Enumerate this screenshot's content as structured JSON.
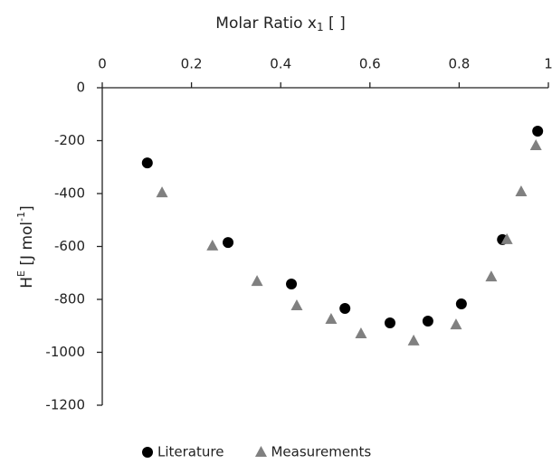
{
  "chart_data": {
    "type": "scatter",
    "x_label": [
      "Molar Ratio x",
      "1",
      " [ ]"
    ],
    "y_label": [
      "H",
      "E",
      " [J mol",
      "-1",
      "]"
    ],
    "xlim": [
      0,
      1
    ],
    "xticks": [
      0,
      0.2,
      0.4,
      0.6,
      0.8,
      1
    ],
    "ylim": [
      -1200,
      0
    ],
    "yticks": [
      0,
      -200,
      -400,
      -600,
      -800,
      -1000,
      -1200
    ],
    "x_axis_position": "top",
    "legend": "bottom",
    "series": [
      {
        "name": "Literature",
        "color": "#000000",
        "marker": "circle",
        "x": [
          0.101,
          0.282,
          0.424,
          0.544,
          0.645,
          0.73,
          0.805,
          0.897,
          0.976
        ],
        "values": [
          -284,
          -585,
          -742,
          -834,
          -889,
          -882,
          -817,
          -574,
          -164
        ]
      },
      {
        "name": "Measurements",
        "color": "#808080",
        "marker": "triangle",
        "x": [
          0.134,
          0.247,
          0.347,
          0.436,
          0.513,
          0.58,
          0.698,
          0.793,
          0.872,
          0.907,
          0.939,
          0.972
        ],
        "values": [
          -397,
          -598,
          -732,
          -824,
          -875,
          -930,
          -957,
          -896,
          -715,
          -574,
          -393,
          -219
        ]
      }
    ]
  }
}
